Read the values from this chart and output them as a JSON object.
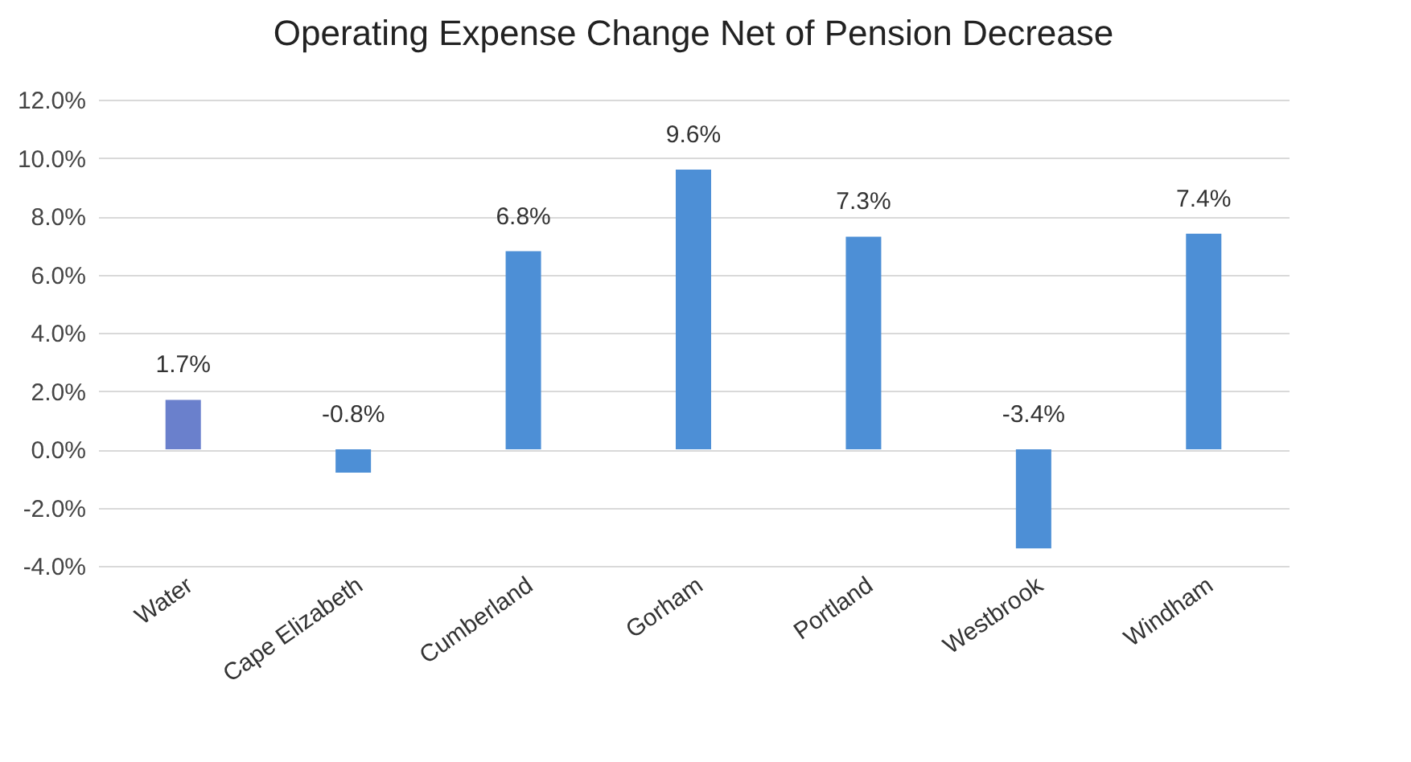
{
  "chart_data": {
    "type": "bar",
    "title": "Operating Expense Change Net of Pension Decrease",
    "categories": [
      "Water",
      "Cape Elizabeth",
      "Cumberland",
      "Gorham",
      "Portland",
      "Westbrook",
      "Windham"
    ],
    "values": [
      1.7,
      -0.8,
      6.8,
      9.6,
      7.3,
      -3.4,
      7.4
    ],
    "value_labels": [
      "1.7%",
      "-0.8%",
      "6.8%",
      "9.6%",
      "7.3%",
      "-3.4%",
      "7.4%"
    ],
    "colors": [
      "#6a80cc",
      "#4d8fd6",
      "#4d8fd6",
      "#4d8fd6",
      "#4d8fd6",
      "#4d8fd6",
      "#4d8fd6"
    ],
    "ylim": [
      -4,
      12
    ],
    "yticks": [
      {
        "value": -4,
        "label": "-4.0%"
      },
      {
        "value": -2,
        "label": "-2.0%"
      },
      {
        "value": 0,
        "label": "0.0%"
      },
      {
        "value": 2,
        "label": "2.0%"
      },
      {
        "value": 4,
        "label": "4.0%"
      },
      {
        "value": 6,
        "label": "6.0%"
      },
      {
        "value": 8,
        "label": "8.0%"
      },
      {
        "value": 10,
        "label": "10.0%"
      },
      {
        "value": 12,
        "label": "12.0%"
      }
    ],
    "grid": "y"
  }
}
